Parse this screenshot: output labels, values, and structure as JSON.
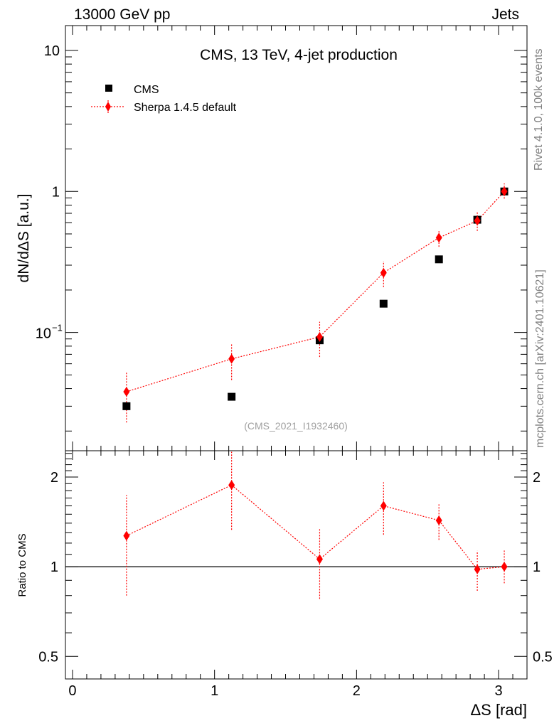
{
  "header": {
    "left": "13000 GeV pp",
    "right": "Jets"
  },
  "side_labels": {
    "rivet": "Rivet 4.1.0,  100k events",
    "source": "mcplots.cern.ch [arXiv:2401.10621]"
  },
  "colors": {
    "sherpa": "#ff0000",
    "data": "#000000"
  },
  "chart_data": [
    {
      "type": "scatter",
      "title": "CMS, 13 TeV, 4-jet production",
      "analysis_id": "(CMS_2021_I1932460)",
      "ylabel": "dN/dΔS [a.u.]",
      "yscale": "log",
      "ylim": [
        0.0145,
        15
      ],
      "xlim": [
        -0.05,
        3.2
      ],
      "y_ticks": [
        {
          "v": 0.1,
          "base": "10",
          "exp": "−1"
        },
        {
          "v": 1,
          "base": "1",
          "exp": ""
        },
        {
          "v": 10,
          "base": "10",
          "exp": ""
        }
      ],
      "legend": {
        "position": "top-left",
        "entries": [
          "CMS",
          "Sherpa 1.4.5 default"
        ]
      },
      "series": [
        {
          "name": "CMS",
          "style": "square",
          "x": [
            0.38,
            1.12,
            1.74,
            2.19,
            2.58,
            2.85,
            3.04
          ],
          "y": [
            0.03,
            0.035,
            0.088,
            0.16,
            0.33,
            0.63,
            1.0
          ]
        },
        {
          "name": "Sherpa 1.4.5 default",
          "style": "diamond-line",
          "x": [
            0.38,
            1.12,
            1.74,
            2.19,
            2.58,
            2.85,
            3.04
          ],
          "y": [
            0.038,
            0.065,
            0.093,
            0.265,
            0.47,
            0.62,
            1.0
          ],
          "err_lo": [
            0.015,
            0.019,
            0.026,
            0.055,
            0.065,
            0.095,
            0.11
          ],
          "err_hi": [
            0.015,
            0.019,
            0.026,
            0.055,
            0.065,
            0.095,
            0.14
          ]
        }
      ]
    },
    {
      "type": "scatter",
      "ylabel": "Ratio to CMS",
      "xlabel": "ΔS [rad]",
      "yscale": "log",
      "ylim": [
        0.42,
        2.45
      ],
      "xlim": [
        -0.05,
        3.2
      ],
      "x_ticks": [
        "0",
        "1",
        "2",
        "3"
      ],
      "y_ticks": [
        {
          "v": 0.5,
          "label": "0.5"
        },
        {
          "v": 1,
          "label": "1"
        },
        {
          "v": 2,
          "label": "2"
        }
      ],
      "reference_line": 1,
      "series": [
        {
          "name": "Sherpa 1.4.5 default / CMS",
          "x": [
            0.38,
            1.12,
            1.74,
            2.19,
            2.58,
            2.85,
            3.04
          ],
          "y": [
            1.27,
            1.88,
            1.06,
            1.6,
            1.43,
            0.98,
            1.0
          ],
          "err_lo": [
            0.47,
            0.55,
            0.28,
            0.32,
            0.2,
            0.15,
            0.12
          ],
          "err_hi": [
            0.47,
            0.55,
            0.28,
            0.32,
            0.2,
            0.15,
            0.14
          ]
        }
      ]
    }
  ]
}
